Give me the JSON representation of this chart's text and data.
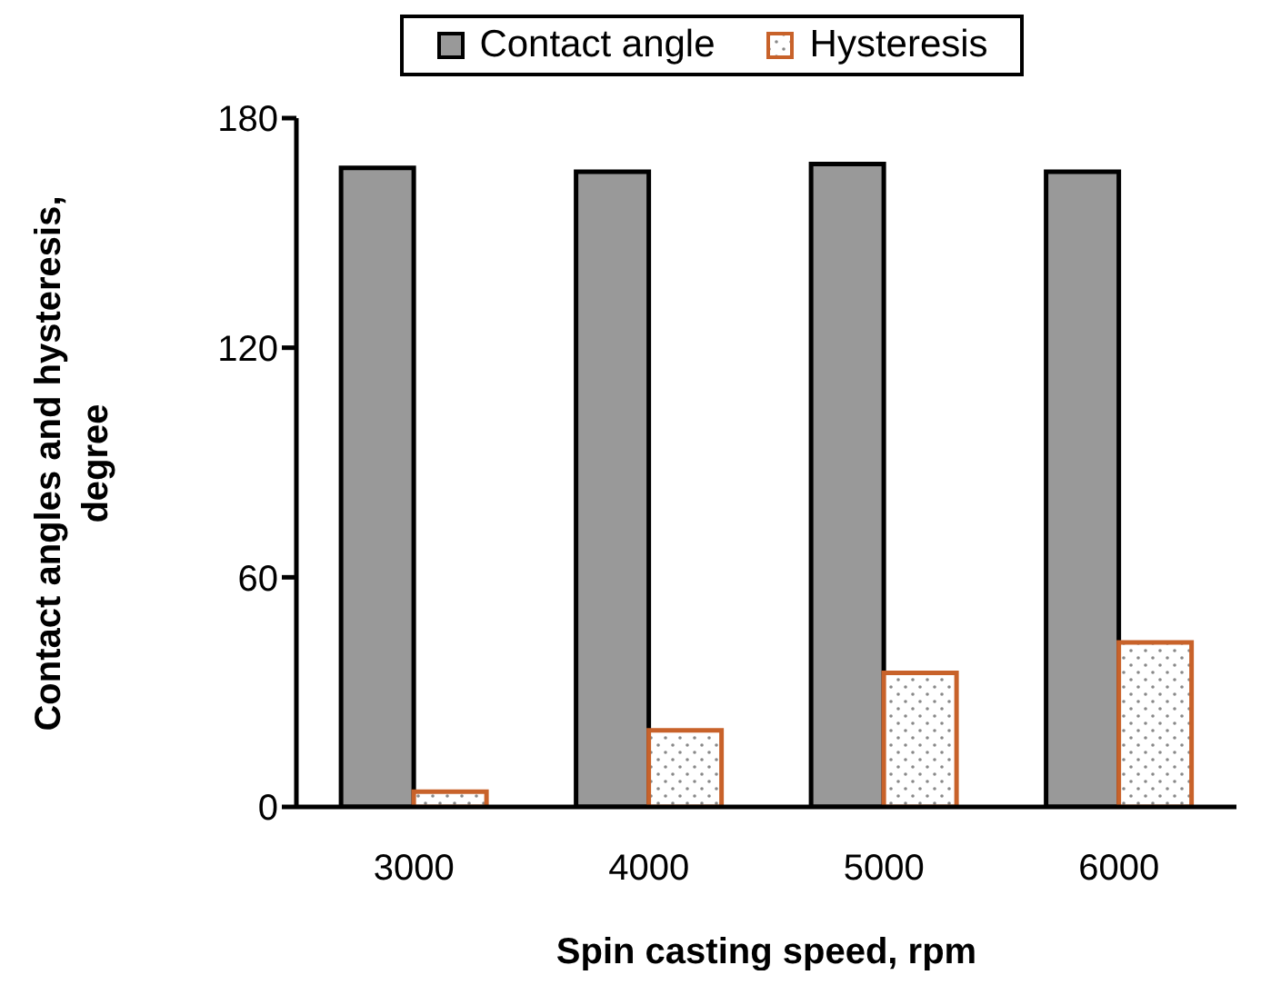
{
  "chart_data": {
    "type": "bar",
    "xlabel": "Spin casting speed, rpm",
    "ylabel": "Contact angles and hysteresis, degree",
    "categories": [
      "3000",
      "4000",
      "5000",
      "6000"
    ],
    "series": [
      {
        "name": "Contact angle",
        "color": "#999999",
        "values": [
          167,
          166,
          168,
          166
        ]
      },
      {
        "name": "Hysteresis",
        "color": "#c8622a",
        "values": [
          4,
          20,
          35,
          43
        ]
      }
    ],
    "ylim": [
      0,
      180
    ],
    "yticks": [
      0,
      60,
      120,
      180
    ],
    "grid": false,
    "legend": "top"
  }
}
